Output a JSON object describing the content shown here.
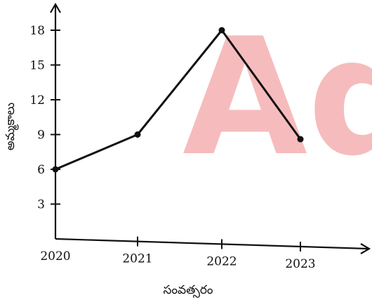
{
  "watermark": {
    "text": "Adda",
    "color": "#f4a6a8"
  },
  "chart_data": {
    "type": "line",
    "title": "",
    "xlabel": "సంవత్సరం",
    "ylabel": "అమ్మకాలు",
    "x": [
      "2020",
      "2021",
      "2022",
      "2023"
    ],
    "values": [
      6,
      9,
      18,
      8.6
    ],
    "yticks": [
      3,
      6,
      9,
      12,
      15,
      18
    ],
    "ylim": [
      0,
      20
    ],
    "grid": false,
    "line_color": "#111111"
  }
}
